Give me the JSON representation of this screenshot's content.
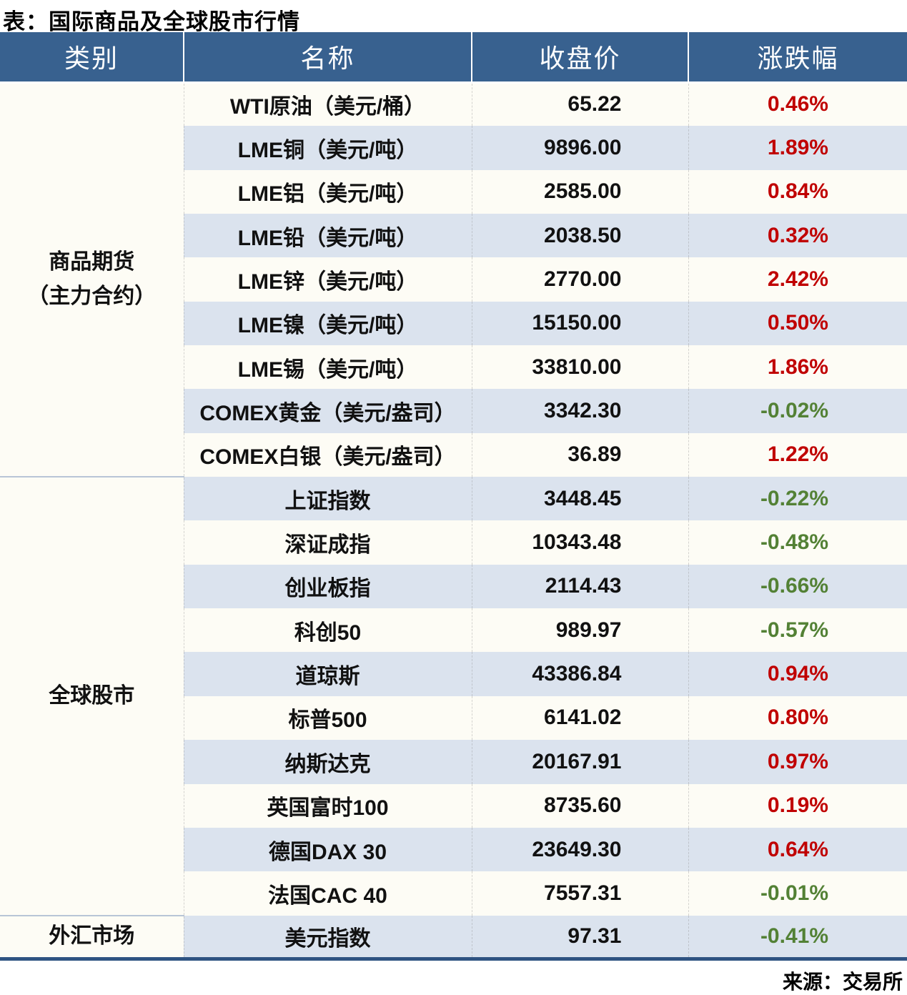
{
  "title": "表：国际商品及全球股市行情",
  "source": "来源：交易所",
  "header": {
    "category": "类别",
    "name": "名称",
    "close": "收盘价",
    "change": "涨跌幅"
  },
  "colors": {
    "up": "#c00000",
    "down": "#538135",
    "header_bg": "#38618f",
    "row_alt": "#dbe3ee",
    "row_base": "#fdfcf5",
    "bottom_line": "#2f5482"
  },
  "groups": [
    {
      "category": "商品期货\n（主力合约）",
      "rows": [
        {
          "name": "WTI原油（美元/桶）",
          "close": "65.22",
          "change": "0.46%"
        },
        {
          "name": "LME铜（美元/吨）",
          "close": "9896.00",
          "change": "1.89%"
        },
        {
          "name": "LME铝（美元/吨）",
          "close": "2585.00",
          "change": "0.84%"
        },
        {
          "name": "LME铅（美元/吨）",
          "close": "2038.50",
          "change": "0.32%"
        },
        {
          "name": "LME锌（美元/吨）",
          "close": "2770.00",
          "change": "2.42%"
        },
        {
          "name": "LME镍（美元/吨）",
          "close": "15150.00",
          "change": "0.50%"
        },
        {
          "name": "LME锡（美元/吨）",
          "close": "33810.00",
          "change": "1.86%"
        },
        {
          "name": "COMEX黄金（美元/盎司）",
          "close": "3342.30",
          "change": "-0.02%"
        },
        {
          "name": "COMEX白银（美元/盎司）",
          "close": "36.89",
          "change": "1.22%"
        }
      ]
    },
    {
      "category": "全球股市",
      "rows": [
        {
          "name": "上证指数",
          "close": "3448.45",
          "change": "-0.22%"
        },
        {
          "name": "深证成指",
          "close": "10343.48",
          "change": "-0.48%"
        },
        {
          "name": "创业板指",
          "close": "2114.43",
          "change": "-0.66%"
        },
        {
          "name": "科创50",
          "close": "989.97",
          "change": "-0.57%"
        },
        {
          "name": "道琼斯",
          "close": "43386.84",
          "change": "0.94%"
        },
        {
          "name": "标普500",
          "close": "6141.02",
          "change": "0.80%"
        },
        {
          "name": "纳斯达克",
          "close": "20167.91",
          "change": "0.97%"
        },
        {
          "name": "英国富时100",
          "close": "8735.60",
          "change": "0.19%"
        },
        {
          "name": "德国DAX 30",
          "close": "23649.30",
          "change": "0.64%"
        },
        {
          "name": "法国CAC 40",
          "close": "7557.31",
          "change": "-0.01%"
        }
      ]
    },
    {
      "category": "外汇市场",
      "rows": [
        {
          "name": "美元指数",
          "close": "97.31",
          "change": "-0.41%"
        }
      ]
    }
  ]
}
